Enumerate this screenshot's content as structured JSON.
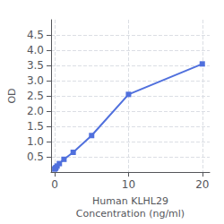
{
  "chart_data": {
    "type": "line",
    "xlabel": "Human KLHL29\nConcentration (ng/ml)",
    "ylabel": "OD",
    "x": [
      0.0,
      0.078,
      0.156,
      0.313,
      0.625,
      1.25,
      2.5,
      5.0,
      10.0,
      20.0
    ],
    "values": [
      0.1,
      0.12,
      0.15,
      0.2,
      0.28,
      0.42,
      0.65,
      1.2,
      2.55,
      3.55
    ],
    "marker": "square",
    "xlim": [
      -0.5,
      21
    ],
    "xticks": [
      0,
      10,
      20
    ],
    "ylim": [
      0,
      5.0
    ],
    "yticks": [
      0.5,
      {
        "value": 1.0,
        "label": "1.0"
      },
      1.5,
      {
        "value": 2.0,
        "label": "2.0"
      },
      2.5,
      {
        "value": 3.0,
        "label": "3.0"
      },
      3.5,
      {
        "value": 4.0,
        "label": "4.0"
      },
      4.5
    ],
    "grid": true
  }
}
